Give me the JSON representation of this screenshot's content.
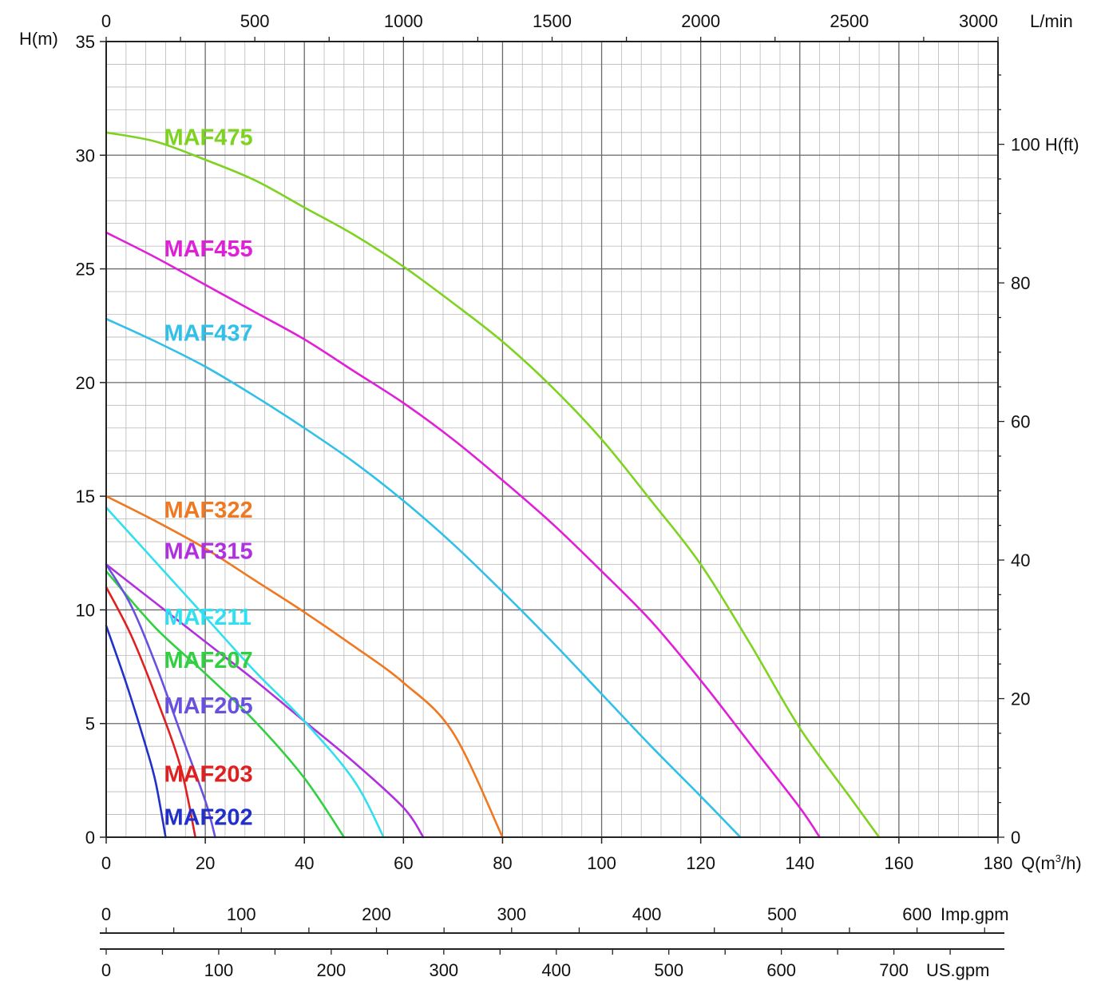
{
  "chart_data": {
    "type": "line",
    "x_axis": {
      "unit_label": "Q(m",
      "unit_sup": "3",
      "unit_tail": "/h)",
      "min": 0,
      "max": 180,
      "ticks": [
        0,
        20,
        40,
        60,
        80,
        100,
        120,
        140,
        160,
        180
      ]
    },
    "y_axis_left": {
      "label": "H(m)",
      "min": 0,
      "max": 35,
      "ticks": [
        0,
        5,
        10,
        15,
        20,
        25,
        30,
        35
      ]
    },
    "y_axis_right": {
      "label": "H(ft)",
      "ticks": [
        0,
        20,
        40,
        60,
        80,
        100
      ]
    },
    "top_axis": {
      "label": "L/min",
      "ticks": [
        0,
        500,
        1000,
        1500,
        2000,
        2500,
        3000
      ]
    },
    "imp_gpm_axis": {
      "label": "Imp.gpm",
      "ticks": [
        0,
        100,
        200,
        300,
        400,
        500,
        600
      ]
    },
    "us_gpm_axis": {
      "label": "US.gpm",
      "ticks": [
        0,
        100,
        200,
        300,
        400,
        500,
        600,
        700
      ]
    },
    "grid": true,
    "series": [
      {
        "name": "MAF475",
        "color": "#7ed321",
        "label_xy": [
          12,
          30.8
        ],
        "points": [
          [
            0,
            31
          ],
          [
            10,
            30.6
          ],
          [
            20,
            29.8
          ],
          [
            30,
            28.9
          ],
          [
            40,
            27.7
          ],
          [
            50,
            26.5
          ],
          [
            60,
            25.1
          ],
          [
            70,
            23.5
          ],
          [
            80,
            21.8
          ],
          [
            90,
            19.8
          ],
          [
            100,
            17.5
          ],
          [
            110,
            14.8
          ],
          [
            120,
            12
          ],
          [
            130,
            8.5
          ],
          [
            140,
            4.8
          ],
          [
            150,
            1.8
          ],
          [
            156,
            0
          ]
        ]
      },
      {
        "name": "MAF455",
        "color": "#e020d8",
        "label_xy": [
          12,
          25.9
        ],
        "points": [
          [
            0,
            26.6
          ],
          [
            10,
            25.5
          ],
          [
            20,
            24.3
          ],
          [
            30,
            23.1
          ],
          [
            40,
            21.9
          ],
          [
            50,
            20.5
          ],
          [
            60,
            19.1
          ],
          [
            70,
            17.5
          ],
          [
            80,
            15.7
          ],
          [
            90,
            13.8
          ],
          [
            100,
            11.7
          ],
          [
            110,
            9.5
          ],
          [
            120,
            6.9
          ],
          [
            130,
            4.1
          ],
          [
            140,
            1.3
          ],
          [
            144,
            0
          ]
        ]
      },
      {
        "name": "MAF437",
        "color": "#30c0e8",
        "label_xy": [
          12,
          22.2
        ],
        "points": [
          [
            0,
            22.8
          ],
          [
            10,
            21.8
          ],
          [
            20,
            20.7
          ],
          [
            30,
            19.4
          ],
          [
            40,
            18
          ],
          [
            50,
            16.5
          ],
          [
            60,
            14.8
          ],
          [
            70,
            12.9
          ],
          [
            80,
            10.8
          ],
          [
            90,
            8.6
          ],
          [
            100,
            6.3
          ],
          [
            110,
            4
          ],
          [
            120,
            1.8
          ],
          [
            128,
            0
          ]
        ]
      },
      {
        "name": "MAF322",
        "color": "#f07820",
        "label_xy": [
          12,
          14.4
        ],
        "points": [
          [
            0,
            15
          ],
          [
            10,
            13.9
          ],
          [
            20,
            12.7
          ],
          [
            30,
            11.3
          ],
          [
            40,
            9.9
          ],
          [
            50,
            8.4
          ],
          [
            60,
            6.8
          ],
          [
            70,
            4.6
          ],
          [
            80,
            0
          ]
        ]
      },
      {
        "name": "MAF315",
        "color": "#b030e0",
        "label_xy": [
          12,
          12.6
        ],
        "points": [
          [
            0,
            12
          ],
          [
            10,
            10.3
          ],
          [
            20,
            8.6
          ],
          [
            30,
            6.9
          ],
          [
            40,
            5.1
          ],
          [
            50,
            3.3
          ],
          [
            60,
            1.3
          ],
          [
            64,
            0
          ]
        ]
      },
      {
        "name": "MAF211",
        "color": "#30e0f0",
        "label_xy": [
          12,
          9.7
        ],
        "points": [
          [
            0,
            14.5
          ],
          [
            10,
            12.1
          ],
          [
            20,
            9.7
          ],
          [
            30,
            7.3
          ],
          [
            40,
            5.1
          ],
          [
            50,
            2.5
          ],
          [
            56,
            0
          ]
        ]
      },
      {
        "name": "MAF207",
        "color": "#30d040",
        "label_xy": [
          12,
          7.8
        ],
        "points": [
          [
            0,
            11.7
          ],
          [
            10,
            9.2
          ],
          [
            20,
            7.2
          ],
          [
            30,
            5.1
          ],
          [
            40,
            2.6
          ],
          [
            48,
            0
          ]
        ]
      },
      {
        "name": "MAF205",
        "color": "#6850e0",
        "label_xy": [
          12,
          5.8
        ],
        "points": [
          [
            0,
            12
          ],
          [
            5,
            10.2
          ],
          [
            10,
            7.6
          ],
          [
            15,
            4.6
          ],
          [
            20,
            1.6
          ],
          [
            22,
            0
          ]
        ]
      },
      {
        "name": "MAF203",
        "color": "#e02020",
        "label_xy": [
          12,
          2.8
        ],
        "points": [
          [
            0,
            11
          ],
          [
            5,
            8.9
          ],
          [
            10,
            6.2
          ],
          [
            15,
            3.1
          ],
          [
            18,
            0
          ]
        ]
      },
      {
        "name": "MAF202",
        "color": "#2030c8",
        "label_xy": [
          12,
          0.9
        ],
        "points": [
          [
            0,
            9.3
          ],
          [
            4,
            6.8
          ],
          [
            8,
            4
          ],
          [
            10,
            2.4
          ],
          [
            12,
            0
          ]
        ]
      }
    ]
  }
}
